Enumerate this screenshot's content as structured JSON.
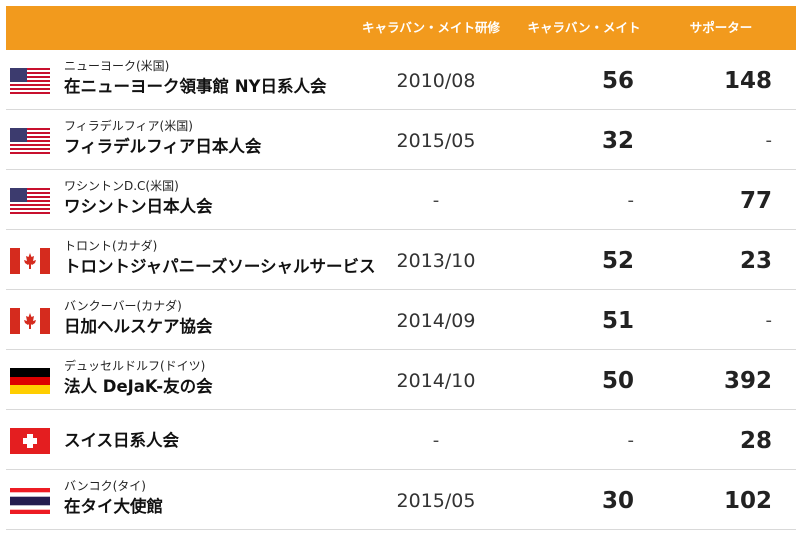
{
  "header": {
    "col_training": "キャラバン・メイト研修",
    "col_mate": "キャラバン・メイト",
    "col_supporter": "サポーター"
  },
  "rows": [
    {
      "flag": "us-flag-icon",
      "sub": "ニューヨーク(米国)",
      "name": "在ニューヨーク領事館 NY日系人会",
      "date": "2010/08",
      "mate": "56",
      "supporter": "148"
    },
    {
      "flag": "us-flag-icon",
      "sub": "フィラデルフィア(米国)",
      "name": "フィラデルフィア日本人会",
      "date": "2015/05",
      "mate": "32",
      "supporter": "-"
    },
    {
      "flag": "us-flag-icon",
      "sub": "ワシントンD.C(米国)",
      "name": "ワシントン日本人会",
      "date": "-",
      "mate": "-",
      "supporter": "77"
    },
    {
      "flag": "canada-flag-icon",
      "sub": "トロント(カナダ)",
      "name": "トロントジャパニーズソーシャルサービス",
      "date": "2013/10",
      "mate": "52",
      "supporter": "23"
    },
    {
      "flag": "canada-flag-icon",
      "sub": "バンクーバー(カナダ)",
      "name": "日加ヘルスケア協会",
      "date": "2014/09",
      "mate": "51",
      "supporter": "-"
    },
    {
      "flag": "germany-flag-icon",
      "sub": "デュッセルドルフ(ドイツ)",
      "name": "法人 DeJaK-友の会",
      "date": "2014/10",
      "mate": "50",
      "supporter": "392"
    },
    {
      "flag": "swiss-flag-icon",
      "sub": "",
      "name": "スイス日系人会",
      "date": "-",
      "mate": "-",
      "supporter": "28"
    },
    {
      "flag": "thailand-flag-icon",
      "sub": "バンコク(タイ)",
      "name": "在タイ大使館",
      "date": "2015/05",
      "mate": "30",
      "supporter": "102"
    }
  ]
}
